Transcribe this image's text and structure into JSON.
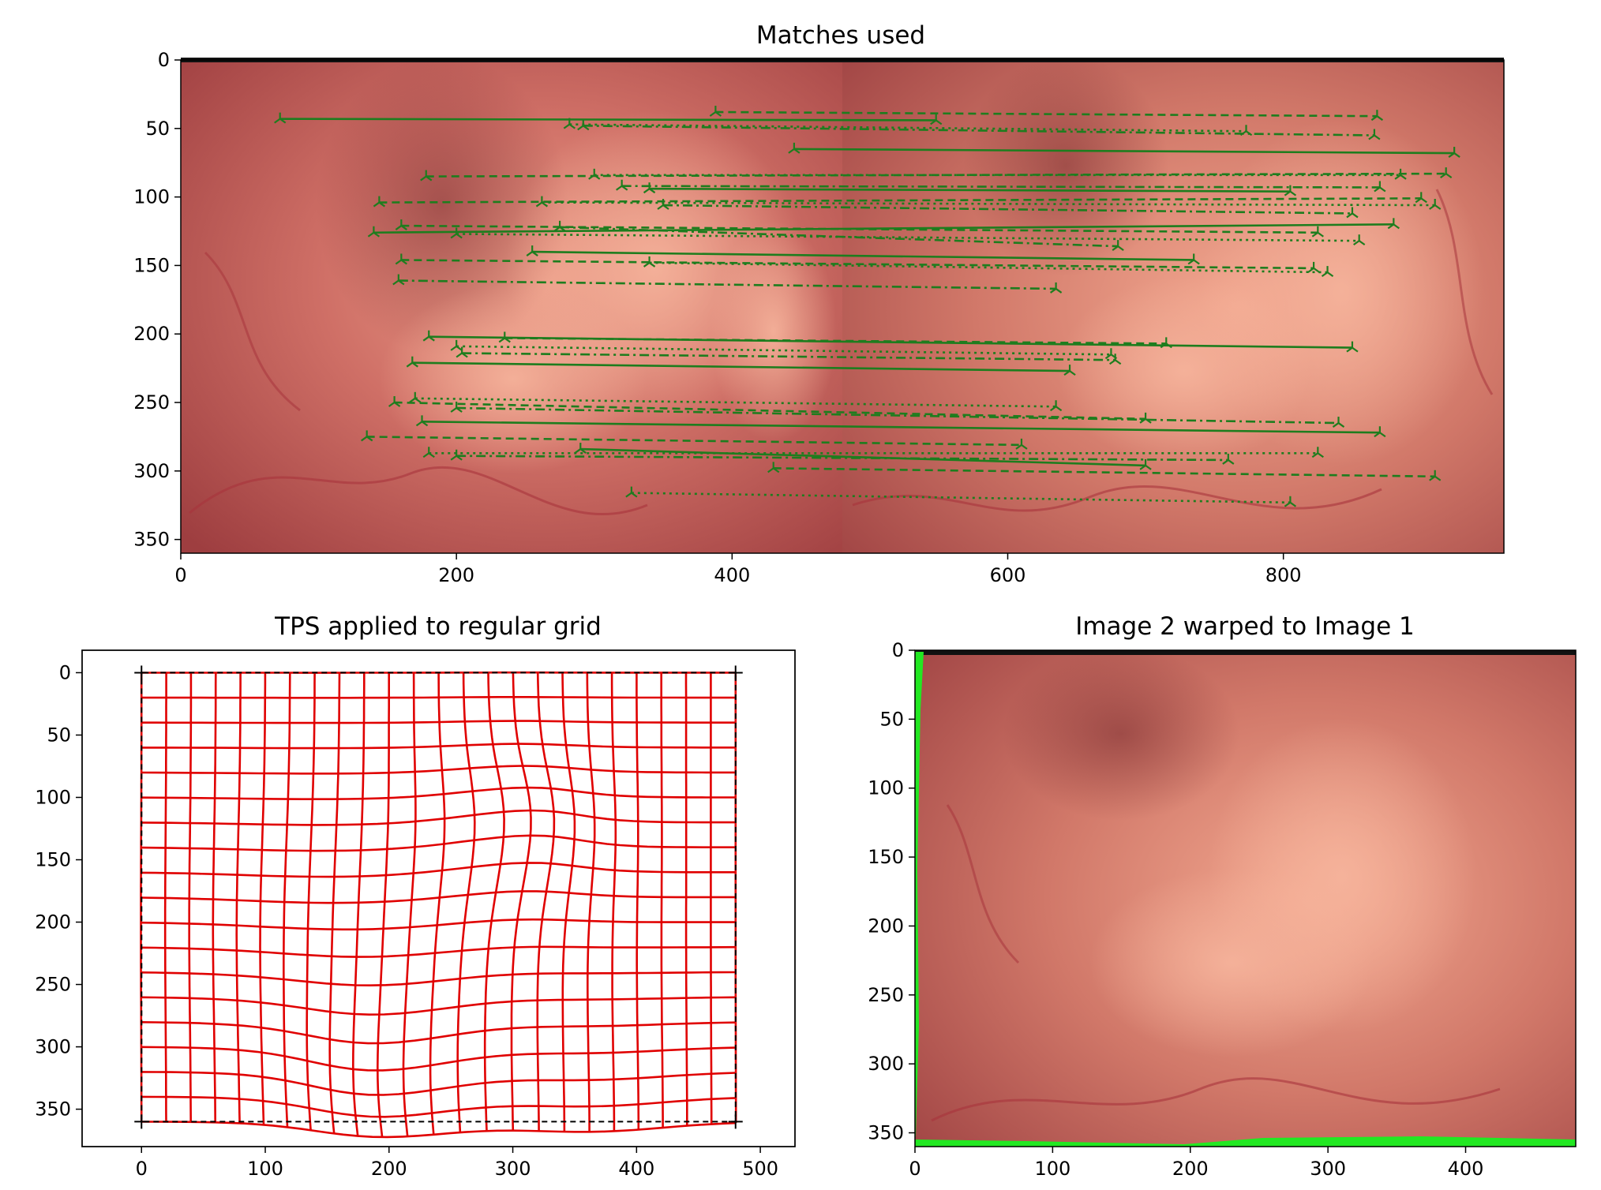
{
  "figure": {
    "background": "#ffffff",
    "tissue_color": "#c86a64",
    "match_color": "#1e7d1e",
    "grid_color": "#e00000",
    "edge_color": "#22e822"
  },
  "chart_data": [
    {
      "type": "image_with_matches",
      "title": "Matches used",
      "xlim": [
        0,
        960
      ],
      "ylim": [
        360,
        0
      ],
      "xticks": [
        0,
        200,
        400,
        600,
        800
      ],
      "yticks": [
        0,
        50,
        100,
        150,
        200,
        250,
        300,
        350
      ],
      "image_split_x": 480,
      "matches": [
        {
          "x1": 72,
          "y1": 43,
          "x2": 548,
          "y2": 44
        },
        {
          "x1": 388,
          "y1": 38,
          "x2": 868,
          "y2": 41
        },
        {
          "x1": 282,
          "y1": 47,
          "x2": 773,
          "y2": 52
        },
        {
          "x1": 292,
          "y1": 48,
          "x2": 866,
          "y2": 55
        },
        {
          "x1": 445,
          "y1": 65,
          "x2": 924,
          "y2": 68
        },
        {
          "x1": 178,
          "y1": 85,
          "x2": 918,
          "y2": 83
        },
        {
          "x1": 300,
          "y1": 84,
          "x2": 885,
          "y2": 84
        },
        {
          "x1": 320,
          "y1": 92,
          "x2": 870,
          "y2": 93
        },
        {
          "x1": 340,
          "y1": 94,
          "x2": 805,
          "y2": 96
        },
        {
          "x1": 144,
          "y1": 104,
          "x2": 900,
          "y2": 101
        },
        {
          "x1": 262,
          "y1": 104,
          "x2": 910,
          "y2": 106
        },
        {
          "x1": 350,
          "y1": 106,
          "x2": 850,
          "y2": 112
        },
        {
          "x1": 140,
          "y1": 126,
          "x2": 880,
          "y2": 120
        },
        {
          "x1": 160,
          "y1": 121,
          "x2": 825,
          "y2": 126
        },
        {
          "x1": 200,
          "y1": 127,
          "x2": 855,
          "y2": 132
        },
        {
          "x1": 275,
          "y1": 122,
          "x2": 680,
          "y2": 136
        },
        {
          "x1": 255,
          "y1": 140,
          "x2": 735,
          "y2": 146
        },
        {
          "x1": 160,
          "y1": 146,
          "x2": 822,
          "y2": 152
        },
        {
          "x1": 340,
          "y1": 148,
          "x2": 832,
          "y2": 155
        },
        {
          "x1": 158,
          "y1": 161,
          "x2": 635,
          "y2": 167
        },
        {
          "x1": 180,
          "y1": 202,
          "x2": 850,
          "y2": 210
        },
        {
          "x1": 235,
          "y1": 203,
          "x2": 715,
          "y2": 207
        },
        {
          "x1": 200,
          "y1": 209,
          "x2": 675,
          "y2": 215
        },
        {
          "x1": 204,
          "y1": 214,
          "x2": 678,
          "y2": 219
        },
        {
          "x1": 168,
          "y1": 221,
          "x2": 645,
          "y2": 227
        },
        {
          "x1": 155,
          "y1": 250,
          "x2": 700,
          "y2": 262
        },
        {
          "x1": 170,
          "y1": 247,
          "x2": 635,
          "y2": 253
        },
        {
          "x1": 200,
          "y1": 254,
          "x2": 840,
          "y2": 265
        },
        {
          "x1": 175,
          "y1": 264,
          "x2": 870,
          "y2": 272
        },
        {
          "x1": 135,
          "y1": 275,
          "x2": 610,
          "y2": 281
        },
        {
          "x1": 180,
          "y1": 287,
          "x2": 825,
          "y2": 287
        },
        {
          "x1": 200,
          "y1": 289,
          "x2": 760,
          "y2": 292
        },
        {
          "x1": 290,
          "y1": 284,
          "x2": 700,
          "y2": 296
        },
        {
          "x1": 430,
          "y1": 298,
          "x2": 910,
          "y2": 304
        },
        {
          "x1": 327,
          "y1": 316,
          "x2": 805,
          "y2": 323
        }
      ]
    },
    {
      "type": "grid_warp",
      "title": "TPS applied to regular grid",
      "xlim": [
        -48,
        528
      ],
      "ylim": [
        380,
        -18
      ],
      "xticks": [
        0,
        100,
        200,
        300,
        400,
        500
      ],
      "yticks": [
        0,
        50,
        100,
        150,
        200,
        250,
        300,
        350
      ],
      "grid_nx": 25,
      "grid_ny": 19,
      "domain": [
        0,
        480,
        0,
        360
      ],
      "bumps": [
        {
          "cx": 300,
          "cy": 130,
          "ax": 15,
          "ay": -10,
          "sigma": 45
        },
        {
          "cx": 200,
          "cy": 310,
          "ax": -8,
          "ay": 18,
          "sigma": 55
        },
        {
          "cx": 150,
          "cy": 200,
          "ax": -5,
          "ay": 4,
          "sigma": 70
        },
        {
          "cx": 360,
          "cy": 360,
          "ax": 2,
          "ay": 8,
          "sigma": 60
        }
      ],
      "boundary": [
        [
          0,
          0
        ],
        [
          480,
          0
        ],
        [
          480,
          360
        ],
        [
          0,
          360
        ]
      ]
    },
    {
      "type": "image",
      "title": "Image 2 warped to Image 1",
      "xlim": [
        0,
        480
      ],
      "ylim": [
        360,
        0
      ],
      "xticks": [
        0,
        100,
        200,
        300,
        400
      ],
      "yticks": [
        0,
        50,
        100,
        150,
        200,
        250,
        300,
        350
      ]
    }
  ]
}
